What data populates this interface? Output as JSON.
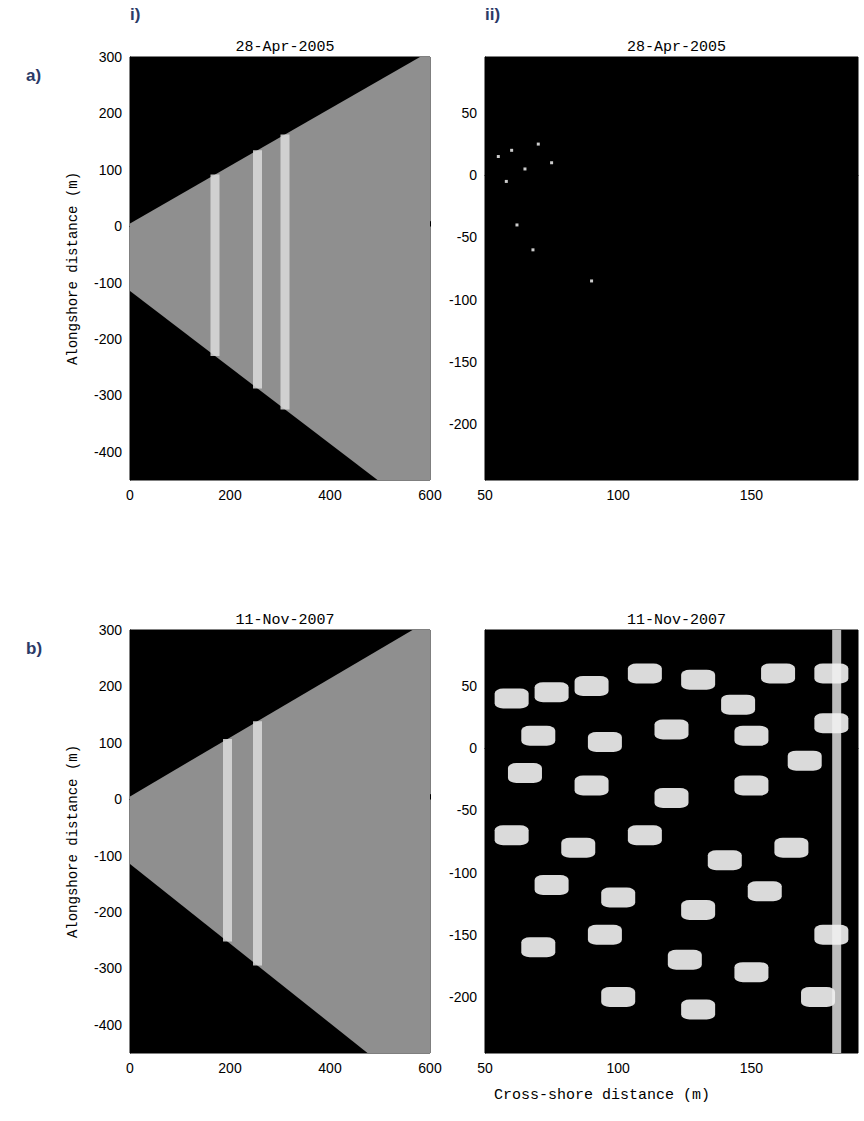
{
  "figure": {
    "xlabel": "Cross-shore distance (m)",
    "row_labels": [
      "a)",
      "b)"
    ],
    "column_labels": [
      "i)",
      "ii)"
    ]
  },
  "chart_data": [
    {
      "type": "image",
      "title": "28-Apr-2005",
      "ylabel": "Alongshore distance (m)",
      "xlim": [
        0,
        600
      ],
      "ylim": [
        -450,
        300
      ],
      "xticks": [
        0,
        200,
        400,
        600
      ],
      "yticks": [
        -400,
        -300,
        -200,
        -100,
        0,
        100,
        200,
        300
      ],
      "footprint": [
        [
          0,
          5
        ],
        [
          580,
          300
        ],
        [
          600,
          300
        ],
        [
          600,
          -450
        ],
        [
          495,
          -450
        ],
        [
          0,
          -115
        ]
      ],
      "bands": [
        170,
        255,
        310
      ]
    },
    {
      "type": "image",
      "title": "28-Apr-2005",
      "xlim": [
        50,
        190
      ],
      "ylim": [
        -245,
        95
      ],
      "xticks": [
        50,
        100,
        150
      ],
      "yticks": [
        -200,
        -150,
        -100,
        -50,
        0,
        50
      ],
      "speckles": [
        [
          55,
          15
        ],
        [
          60,
          20
        ],
        [
          65,
          5
        ],
        [
          70,
          25
        ],
        [
          75,
          10
        ],
        [
          58,
          -5
        ],
        [
          62,
          -40
        ],
        [
          90,
          -85
        ],
        [
          68,
          -60
        ]
      ]
    },
    {
      "type": "image",
      "title": "11-Nov-2007",
      "ylabel": "Alongshore distance (m)",
      "xlim": [
        0,
        600
      ],
      "ylim": [
        -450,
        300
      ],
      "xticks": [
        0,
        200,
        400,
        600
      ],
      "yticks": [
        -400,
        -300,
        -200,
        -100,
        0,
        100,
        200,
        300
      ],
      "footprint": [
        [
          0,
          5
        ],
        [
          565,
          300
        ],
        [
          600,
          300
        ],
        [
          600,
          -450
        ],
        [
          475,
          -450
        ],
        [
          0,
          -115
        ]
      ],
      "bands": [
        195,
        255
      ]
    },
    {
      "type": "image",
      "title": "11-Nov-2007",
      "xlim": [
        50,
        190
      ],
      "ylim": [
        -245,
        95
      ],
      "xticks": [
        50,
        100,
        150
      ],
      "yticks": [
        -200,
        -150,
        -100,
        -50,
        0,
        50
      ],
      "bands": [
        182
      ],
      "patches": [
        [
          60,
          40
        ],
        [
          75,
          45
        ],
        [
          90,
          50
        ],
        [
          110,
          60
        ],
        [
          130,
          55
        ],
        [
          145,
          35
        ],
        [
          160,
          60
        ],
        [
          70,
          10
        ],
        [
          95,
          5
        ],
        [
          120,
          15
        ],
        [
          150,
          10
        ],
        [
          65,
          -20
        ],
        [
          90,
          -30
        ],
        [
          120,
          -40
        ],
        [
          150,
          -30
        ],
        [
          170,
          -10
        ],
        [
          60,
          -70
        ],
        [
          85,
          -80
        ],
        [
          110,
          -70
        ],
        [
          140,
          -90
        ],
        [
          165,
          -80
        ],
        [
          75,
          -110
        ],
        [
          100,
          -120
        ],
        [
          130,
          -130
        ],
        [
          155,
          -115
        ],
        [
          70,
          -160
        ],
        [
          95,
          -150
        ],
        [
          125,
          -170
        ],
        [
          150,
          -180
        ],
        [
          175,
          -200
        ],
        [
          100,
          -200
        ],
        [
          130,
          -210
        ],
        [
          180,
          -150
        ],
        [
          180,
          60
        ],
        [
          180,
          20
        ]
      ]
    }
  ]
}
